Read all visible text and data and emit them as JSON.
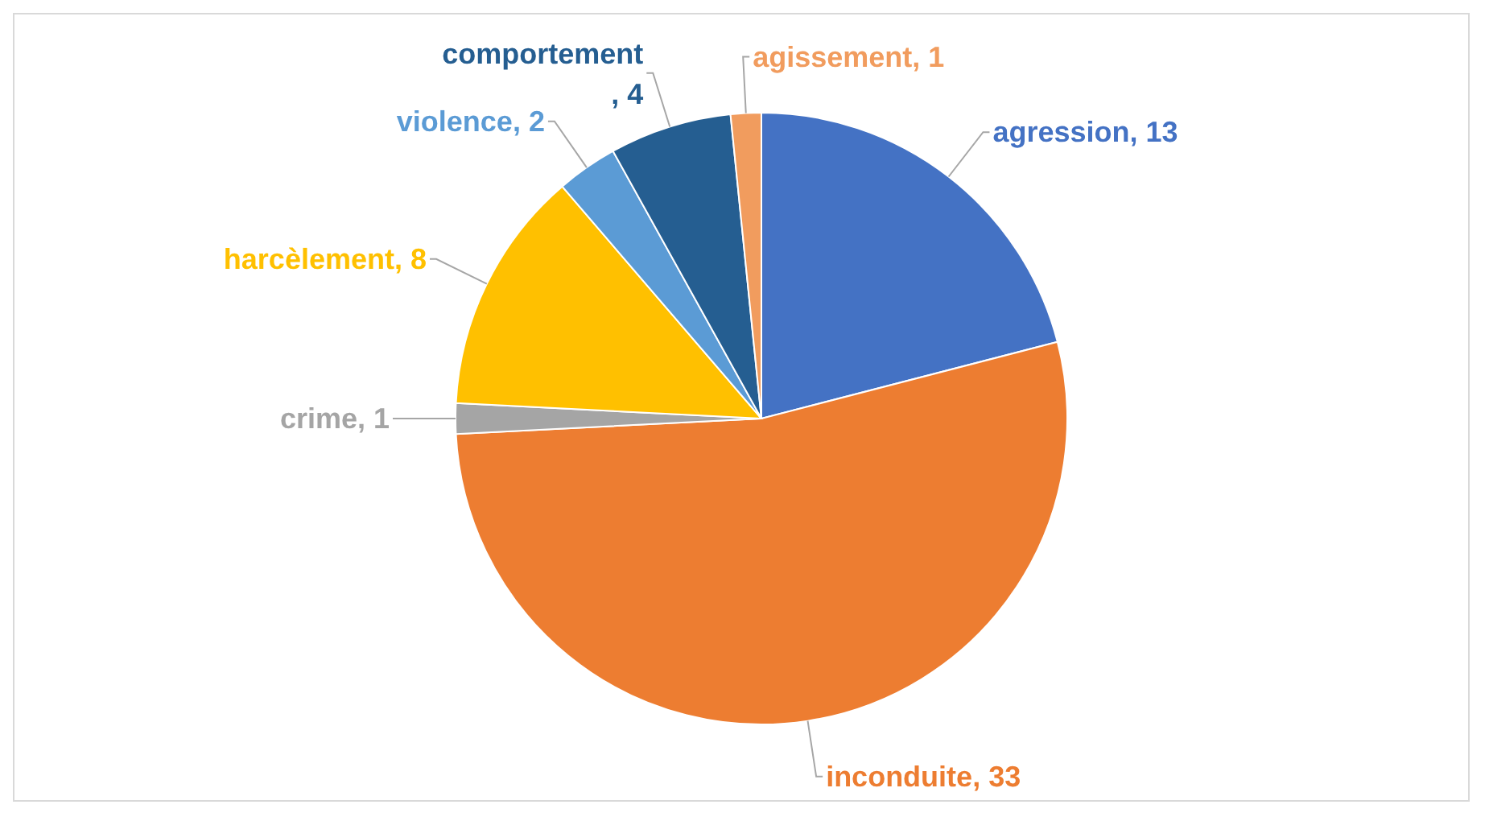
{
  "chart_data": {
    "type": "pie",
    "categories": [
      "agression",
      "inconduite",
      "crime",
      "harcèlement",
      "violence",
      "comportement",
      "agissement"
    ],
    "values": [
      13,
      33,
      1,
      8,
      2,
      4,
      1
    ],
    "value_labels": [
      ", 13",
      ", 33",
      ", 1",
      ", 8",
      ", 2",
      ", 4",
      ", 1"
    ],
    "colors": [
      "#4472c4",
      "#ed7d31",
      "#a5a5a5",
      "#ffc000",
      "#5b9bd5",
      "#255e91",
      "#f19c5e"
    ]
  }
}
